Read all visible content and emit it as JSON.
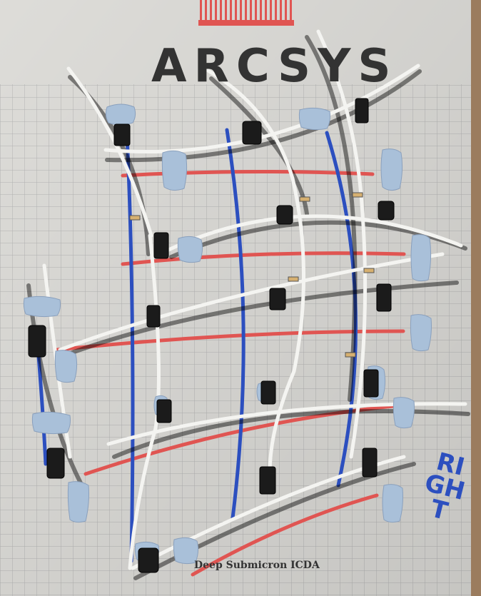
{
  "paper": {
    "logo_text": "ARCSYS",
    "footer_text": "Deep Submicron ICDA",
    "side_label": "RIGHT"
  },
  "colors": {
    "paper": "#e9e8e4",
    "grid": "#b9b9b9",
    "blue_marker": "#2c4fbf",
    "red_marker": "#e05552",
    "putty": "#a9c0d9",
    "wire": "#f4f4f1",
    "logo_stripes": "#e05552"
  },
  "icons": {
    "putty": "putty-blob-icon",
    "switch": "switch-component-icon"
  }
}
